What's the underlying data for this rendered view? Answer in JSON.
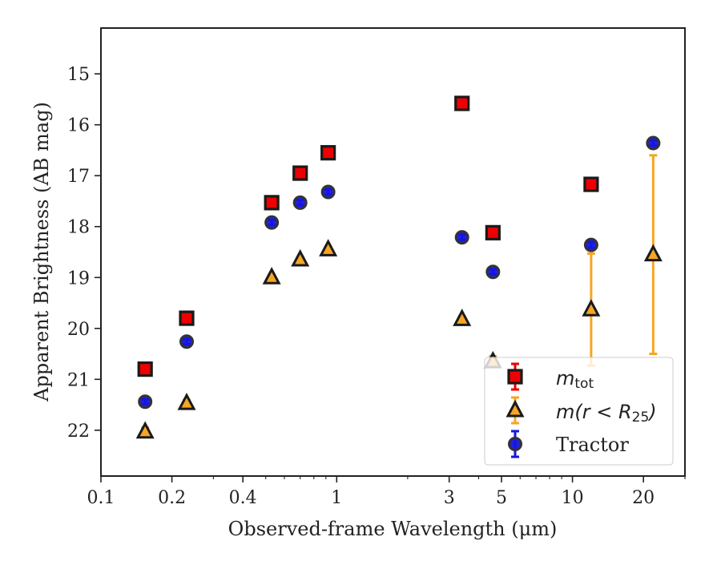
{
  "chart_data": {
    "type": "scatter",
    "title": "",
    "xlabel": "Observed-frame Wavelength (μm)",
    "ylabel": "Apparent Brightness (AB mag)",
    "x_scale": "log",
    "xlim": [
      0.1,
      30
    ],
    "ylim": [
      22.9,
      14.1
    ],
    "y_inverted": true,
    "x_ticks": [
      {
        "value": 0.1,
        "label": "0.1"
      },
      {
        "value": 0.2,
        "label": "0.2"
      },
      {
        "value": 0.4,
        "label": "0.4"
      },
      {
        "value": 1,
        "label": "1"
      },
      {
        "value": 3,
        "label": "3"
      },
      {
        "value": 5,
        "label": "5"
      },
      {
        "value": 10,
        "label": "10"
      },
      {
        "value": 20,
        "label": "20"
      }
    ],
    "y_ticks": [
      {
        "value": 15,
        "label": "15"
      },
      {
        "value": 16,
        "label": "16"
      },
      {
        "value": 17,
        "label": "17"
      },
      {
        "value": 18,
        "label": "18"
      },
      {
        "value": 19,
        "label": "19"
      },
      {
        "value": 20,
        "label": "20"
      },
      {
        "value": 21,
        "label": "21"
      },
      {
        "value": 22,
        "label": "22"
      }
    ],
    "grid": false,
    "legend_position": "lower-right",
    "series": [
      {
        "name": "m_tot",
        "marker": "square",
        "color": "#ee0000",
        "edge_color": "#1a1a1a",
        "errorbar_color": "#ee0000",
        "points": [
          {
            "x": 0.154,
            "y": 20.8,
            "err": 0.05
          },
          {
            "x": 0.231,
            "y": 19.8,
            "err": 0.05
          },
          {
            "x": 0.53,
            "y": 17.53,
            "err": 0.04
          },
          {
            "x": 0.7,
            "y": 16.95,
            "err": 0.04
          },
          {
            "x": 0.92,
            "y": 16.55,
            "err": 0.04
          },
          {
            "x": 3.4,
            "y": 15.58,
            "err": 0.04
          },
          {
            "x": 4.6,
            "y": 18.12,
            "err": 0.05
          },
          {
            "x": 12.0,
            "y": 17.17,
            "err": 0.05
          }
        ]
      },
      {
        "name": "m(r < R25)",
        "marker": "triangle",
        "color": "#f5a623",
        "edge_color": "#1a1a1a",
        "errorbar_color": "#f5a623",
        "points": [
          {
            "x": 0.154,
            "y": 22.03,
            "err": 0.08
          },
          {
            "x": 0.231,
            "y": 21.47,
            "err": 0.06
          },
          {
            "x": 0.53,
            "y": 19.0,
            "err": 0.05
          },
          {
            "x": 0.7,
            "y": 18.65,
            "err": 0.05
          },
          {
            "x": 0.92,
            "y": 18.45,
            "err": 0.05
          },
          {
            "x": 3.4,
            "y": 19.82,
            "err": 0.05
          },
          {
            "x": 4.6,
            "y": 20.65,
            "err": 0.1
          },
          {
            "x": 12.0,
            "y": 19.63,
            "err": 1.1
          },
          {
            "x": 22.0,
            "y": 18.55,
            "err": 1.95
          }
        ]
      },
      {
        "name": "Tractor",
        "marker": "circle",
        "color": "#1515e0",
        "edge_color": "#333333",
        "errorbar_color": "#1515e0",
        "points": [
          {
            "x": 0.154,
            "y": 21.44,
            "err": 0.05
          },
          {
            "x": 0.231,
            "y": 20.26,
            "err": 0.05
          },
          {
            "x": 0.53,
            "y": 17.92,
            "err": 0.05
          },
          {
            "x": 0.7,
            "y": 17.53,
            "err": 0.05
          },
          {
            "x": 0.92,
            "y": 17.32,
            "err": 0.05
          },
          {
            "x": 3.4,
            "y": 18.21,
            "err": 0.05
          },
          {
            "x": 4.6,
            "y": 18.89,
            "err": 0.05
          },
          {
            "x": 12.0,
            "y": 18.36,
            "err": 0.06
          },
          {
            "x": 22.0,
            "y": 16.36,
            "err": 0.05
          }
        ]
      }
    ]
  }
}
